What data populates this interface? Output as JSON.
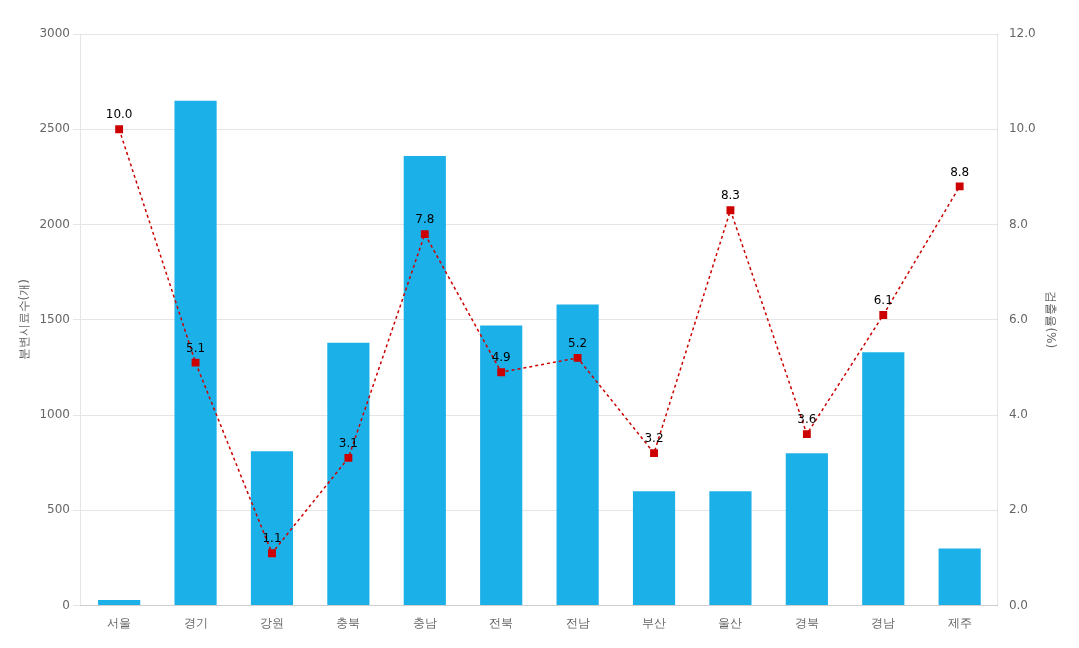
{
  "chart_data": {
    "type": "bar",
    "categories": [
      "서울",
      "경기",
      "강원",
      "충북",
      "충남",
      "전북",
      "전남",
      "부산",
      "울산",
      "경북",
      "경남",
      "제주"
    ],
    "series": [
      {
        "type": "bar",
        "color": "#1CB0E8",
        "values": [
          30,
          2650,
          810,
          1380,
          2360,
          1470,
          1580,
          600,
          600,
          800,
          1330,
          300
        ]
      },
      {
        "type": "line",
        "axis": "y2",
        "color": "#CC0000",
        "line_style": "dashed",
        "marker": "square",
        "data_labels": true,
        "values": [
          10.0,
          5.1,
          1.1,
          3.1,
          7.8,
          4.9,
          5.2,
          3.2,
          8.3,
          3.6,
          6.1,
          8.8
        ],
        "value_labels": [
          "10.0",
          "5.1",
          "1.1",
          "3.1",
          "7.8",
          "4.9",
          "5.2",
          "3.2",
          "8.3",
          "3.6",
          "6.1",
          "8.8"
        ]
      }
    ],
    "ylabel": "분변시료수(개)",
    "y2label": "검출율(%)",
    "ylim": [
      0,
      3000
    ],
    "yticks": [
      0,
      500,
      1000,
      1500,
      2000,
      2500,
      3000
    ],
    "y2lim": [
      0,
      12.0
    ],
    "y2ticks": [
      {
        "value": 0,
        "label": "0.0"
      },
      {
        "value": 2,
        "label": "2.0"
      },
      {
        "value": 4,
        "label": "4.0"
      },
      {
        "value": 6,
        "label": "6.0"
      },
      {
        "value": 8,
        "label": "8.0"
      },
      {
        "value": 10,
        "label": "10.0"
      },
      {
        "value": 12,
        "label": "12.0"
      }
    ],
    "grid": true,
    "legend": false
  }
}
